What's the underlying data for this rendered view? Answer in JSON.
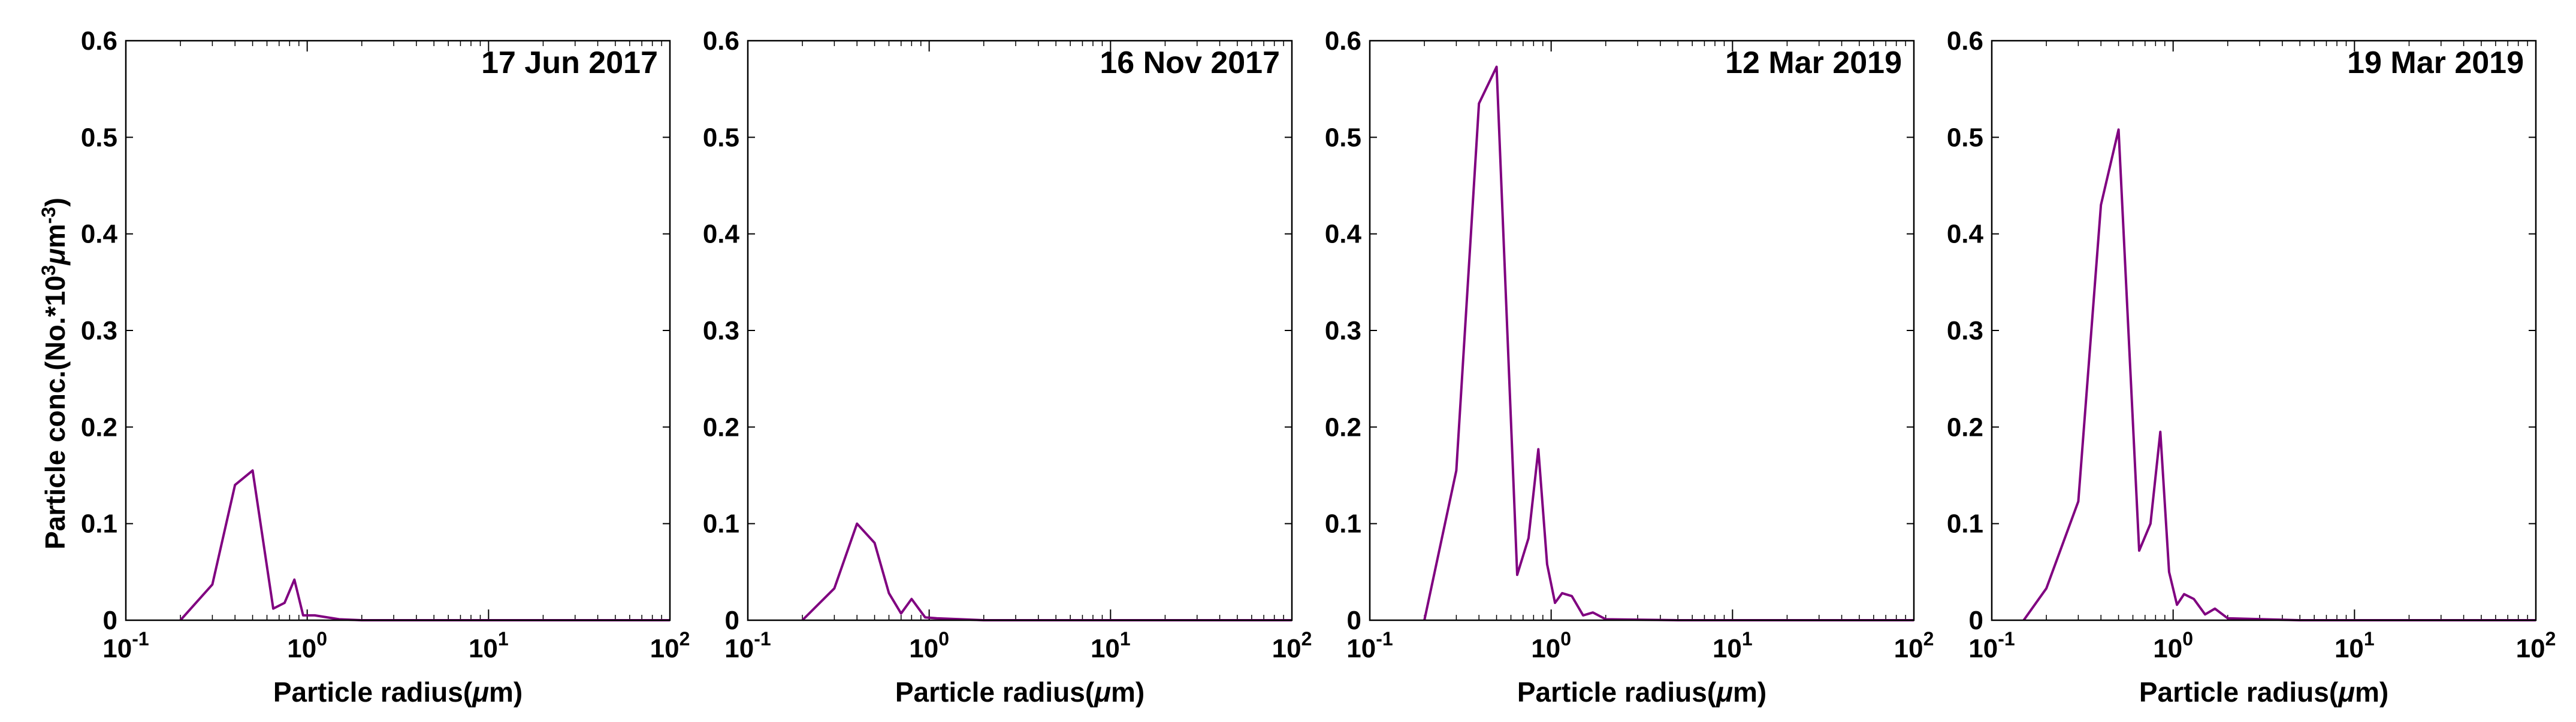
{
  "figure": {
    "ylabel_main": "Particle conc.(No.*10",
    "ylabel_sup": "3",
    "ylabel_mu": "μ",
    "ylabel_m": "m",
    "ylabel_sup2": "-3",
    "ylabel_close": ")"
  },
  "chart_data": [
    {
      "type": "line",
      "title": "17 Jun 2017",
      "xlabel": "Particle radius(μm)",
      "xscale": "log",
      "xlim": [
        0.1,
        100
      ],
      "ylim": [
        0,
        0.6
      ],
      "yticks": [
        "0",
        "0.1",
        "0.2",
        "0.3",
        "0.4",
        "0.5",
        "0.6"
      ],
      "xticks": [
        {
          "base": "10",
          "exp": "-1"
        },
        {
          "base": "10",
          "exp": "0"
        },
        {
          "base": "10",
          "exp": "1"
        },
        {
          "base": "10",
          "exp": "2"
        }
      ],
      "color": "#800080",
      "x": [
        0.2,
        0.3,
        0.4,
        0.5,
        0.65,
        0.75,
        0.85,
        0.95,
        1.1,
        1.5,
        2,
        5,
        10,
        100
      ],
      "y": [
        0,
        0.037,
        0.14,
        0.155,
        0.012,
        0.018,
        0.042,
        0.005,
        0.005,
        0.001,
        0,
        0,
        0,
        0
      ]
    },
    {
      "type": "line",
      "title": "16 Nov 2017",
      "xlabel": "Particle radius(μm)",
      "xscale": "log",
      "xlim": [
        0.1,
        100
      ],
      "ylim": [
        0,
        0.6
      ],
      "yticks": [
        "0",
        "0.1",
        "0.2",
        "0.3",
        "0.4",
        "0.5",
        "0.6"
      ],
      "xticks": [
        {
          "base": "10",
          "exp": "-1"
        },
        {
          "base": "10",
          "exp": "0"
        },
        {
          "base": "10",
          "exp": "1"
        },
        {
          "base": "10",
          "exp": "2"
        }
      ],
      "color": "#800080",
      "x": [
        0.2,
        0.3,
        0.4,
        0.5,
        0.6,
        0.7,
        0.8,
        0.95,
        1.1,
        1.5,
        2,
        5,
        10,
        100
      ],
      "y": [
        0,
        0.033,
        0.1,
        0.08,
        0.028,
        0.007,
        0.022,
        0.003,
        0.002,
        0.001,
        0,
        0,
        0,
        0
      ]
    },
    {
      "type": "line",
      "title": "12 Mar 2019",
      "xlabel": "Particle radius(μm)",
      "xscale": "log",
      "xlim": [
        0.1,
        100
      ],
      "ylim": [
        0,
        0.6
      ],
      "yticks": [
        "0",
        "0.1",
        "0.2",
        "0.3",
        "0.4",
        "0.5",
        "0.6"
      ],
      "xticks": [
        {
          "base": "10",
          "exp": "-1"
        },
        {
          "base": "10",
          "exp": "0"
        },
        {
          "base": "10",
          "exp": "1"
        },
        {
          "base": "10",
          "exp": "2"
        }
      ],
      "color": "#800080",
      "x": [
        0.2,
        0.3,
        0.4,
        0.5,
        0.65,
        0.75,
        0.85,
        0.95,
        1.05,
        1.15,
        1.3,
        1.5,
        1.7,
        2,
        5,
        10,
        100
      ],
      "y": [
        0,
        0.155,
        0.535,
        0.573,
        0.047,
        0.085,
        0.177,
        0.058,
        0.018,
        0.028,
        0.025,
        0.005,
        0.008,
        0.001,
        0,
        0,
        0
      ]
    },
    {
      "type": "line",
      "title": "19 Mar 2019",
      "xlabel": "Particle radius(μm)",
      "xscale": "log",
      "xlim": [
        0.1,
        100
      ],
      "ylim": [
        0,
        0.6
      ],
      "yticks": [
        "0",
        "0.1",
        "0.2",
        "0.3",
        "0.4",
        "0.5",
        "0.6"
      ],
      "xticks": [
        {
          "base": "10",
          "exp": "-1"
        },
        {
          "base": "10",
          "exp": "0"
        },
        {
          "base": "10",
          "exp": "1"
        },
        {
          "base": "10",
          "exp": "2"
        }
      ],
      "color": "#800080",
      "x": [
        0.15,
        0.2,
        0.3,
        0.4,
        0.5,
        0.65,
        0.75,
        0.85,
        0.95,
        1.05,
        1.15,
        1.3,
        1.5,
        1.7,
        2,
        5,
        10,
        100
      ],
      "y": [
        0,
        0.033,
        0.123,
        0.43,
        0.508,
        0.072,
        0.1,
        0.195,
        0.05,
        0.016,
        0.027,
        0.022,
        0.006,
        0.012,
        0.002,
        0,
        0,
        0
      ]
    }
  ]
}
